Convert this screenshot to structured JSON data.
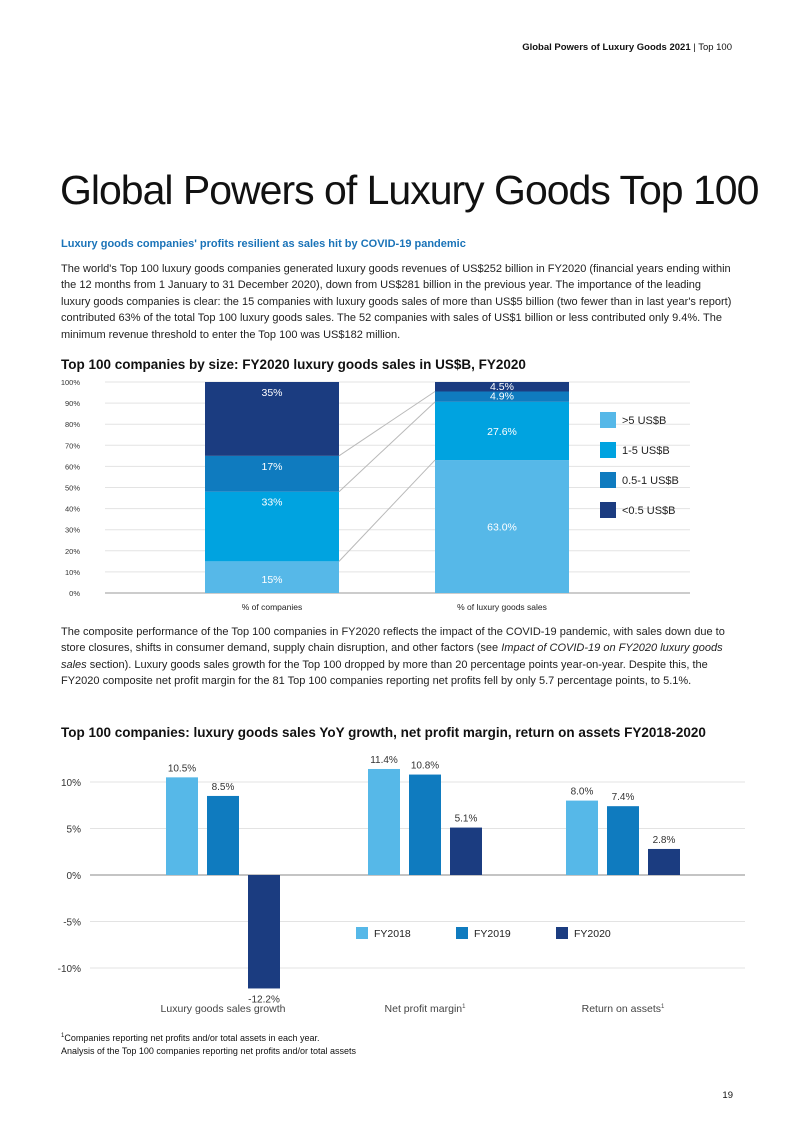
{
  "header": {
    "publication": "Global Powers of Luxury Goods 2021",
    "separator": "|",
    "section": "Top 100"
  },
  "title": "Global Powers of Luxury Goods Top 100",
  "section_heading": "Luxury goods companies' profits resilient as sales hit by COVID-19 pandemic",
  "intro_paragraph": "The world's Top 100 luxury goods companies generated luxury goods revenues of US$252 billion in FY2020 (financial years ending within the 12 months from 1 January to 31 December 2020), down from US$281 billion in the previous year. The importance of the leading luxury goods companies is clear: the 15 companies with luxury goods sales of more than US$5 billion (two fewer than in last year's report) contributed 63% of the total Top 100 luxury goods sales. The 52 companies with sales of US$1 billion or less contributed only 9.4%. The minimum revenue threshold to enter the Top 100 was US$182 million.",
  "composite_paragraph": {
    "part1": "The composite performance of the Top 100 companies in FY2020 reflects the impact of the COVID-19 pandemic, with sales down due to store closures, shifts in consumer demand, supply chain disruption, and other factors (see ",
    "italic": "Impact of COVID-19 on FY2020 luxury goods sales",
    "part2": " section). Luxury goods sales growth for the Top 100 dropped by more than 20 percentage points year-on-year. Despite this, the FY2020 composite net profit margin for the 81 Top 100 companies reporting net profits fell by only 5.7 percentage points, to 5.1%."
  },
  "footnote": {
    "marker": "1",
    "line1": "Companies reporting net profits and/or total assets in each year.",
    "line2": "Analysis of the Top 100 companies reporting net profits and/or total assets"
  },
  "page_number": "19",
  "chart_data": [
    {
      "type": "bar",
      "stacked": true,
      "title": "Top 100  companies by size: FY2020 luxury goods sales in US$B, FY2020",
      "categories": [
        "% of companies",
        "% of luxury goods sales"
      ],
      "series": [
        {
          "name": ">5 US$B",
          "color": "#56b8e8",
          "values": [
            15,
            63.0
          ],
          "labels": [
            "15%",
            "63.0%"
          ]
        },
        {
          "name": "1-5 US$B",
          "color": "#00a3e0",
          "values": [
            33,
            27.6
          ],
          "labels": [
            "33%",
            "27.6%"
          ]
        },
        {
          "name": "0.5-1 US$B",
          "color": "#0f7bbf",
          "values": [
            17,
            4.9
          ],
          "labels": [
            "17%",
            "4.9%"
          ]
        },
        {
          "name": "<0.5 US$B",
          "color": "#1b3c80",
          "values": [
            35,
            4.5
          ],
          "labels": [
            "35%",
            "4.5%"
          ]
        }
      ],
      "ylim": [
        0,
        100
      ],
      "yticks": [
        "0%",
        "10%",
        "20%",
        "30%",
        "40%",
        "50%",
        "60%",
        "70%",
        "80%",
        "90%",
        "100%"
      ],
      "grid": true,
      "legend": "right"
    },
    {
      "type": "bar",
      "title": "Top 100 companies: luxury goods sales YoY growth, net profit margin, return on assets FY2018-2020",
      "categories": [
        "Luxury goods sales growth",
        "Net profit margin",
        "Return on assets"
      ],
      "category_superscripts": [
        "",
        "1",
        "1"
      ],
      "series": [
        {
          "name": "FY2018",
          "color": "#56b8e8",
          "values": [
            10.5,
            11.4,
            8.0
          ],
          "labels": [
            "10.5%",
            "11.4%",
            "8.0%"
          ]
        },
        {
          "name": "FY2019",
          "color": "#0f7bbf",
          "values": [
            8.5,
            10.8,
            7.4
          ],
          "labels": [
            "8.5%",
            "10.8%",
            "7.4%"
          ]
        },
        {
          "name": "FY2020",
          "color": "#1b3c80",
          "values": [
            -12.2,
            5.1,
            2.8
          ],
          "labels": [
            "-12.2%",
            "5.1%",
            "2.8%"
          ]
        }
      ],
      "ylim": [
        -10,
        10
      ],
      "yticks": [
        "10%",
        "5%",
        "0%",
        "-5%",
        "-10%"
      ],
      "grid": true,
      "legend": "center"
    }
  ]
}
